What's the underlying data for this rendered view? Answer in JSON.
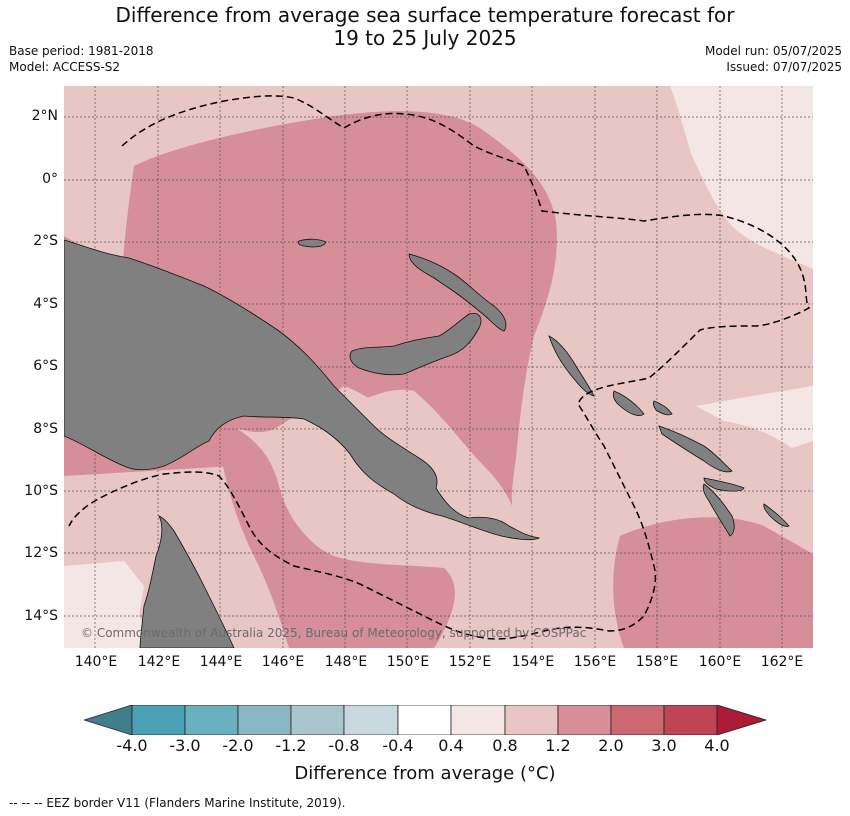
{
  "title": {
    "line1": "Difference from average sea surface temperature forecast for",
    "line2": "19 to 25 July 2025"
  },
  "meta": {
    "base_period": "Base period: 1981-2018",
    "model": "Model: ACCESS-S2",
    "model_run": "Model run: 05/07/2025",
    "issued": "Issued: 07/07/2025"
  },
  "map": {
    "latitude_labels": [
      "2°N",
      "0°",
      "2°S",
      "4°S",
      "6°S",
      "8°S",
      "10°S",
      "12°S",
      "14°S"
    ],
    "longitude_labels": [
      "140°E",
      "142°E",
      "144°E",
      "146°E",
      "148°E",
      "150°E",
      "152°E",
      "154°E",
      "156°E",
      "158°E",
      "160°E",
      "162°E"
    ],
    "land_color": "#808080",
    "credit": "© Commonwealth of Australia 2025, Bureau of Meteorology, supported by COSPPac"
  },
  "colorbar": {
    "ticks": [
      "-4.0",
      "-3.0",
      "-2.0",
      "-1.2",
      "-0.8",
      "-0.4",
      "0.4",
      "0.8",
      "1.2",
      "2.0",
      "3.0",
      "4.0"
    ],
    "colors": {
      "below_-4": "#3f7f8b",
      "-4_-3": "#4aa0b4",
      "-3_-2": "#6cafbf",
      "-2_-1.2": "#8ab7c3",
      "-1.2_-0.8": "#a8c6cc",
      "-0.8_-0.4": "#c9d8de",
      "-0.4_0.4": "#ffffff",
      "0.4_0.8": "#f5e6e6",
      "0.8_1.2": "#e8c6c3",
      "1.2_2.0": "#d68e98",
      "2.0_3.0": "#cc6872",
      "3.0_4.0": "#bf4454",
      "above_4": "#ad1c37"
    },
    "label": "Difference from average (°C)"
  },
  "footnote": "--  --  -- EEZ border V11 (Flanders Marine Institute, 2019)."
}
